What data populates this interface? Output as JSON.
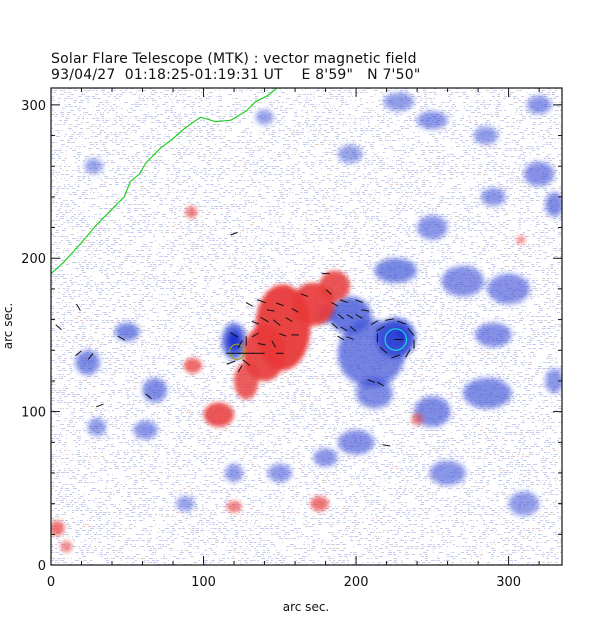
{
  "header": {
    "line1": "Solar Flare Telescope (MTK) : vector magnetic field",
    "date": "93/04/27",
    "time_range": "01:18:25-01:19:31 UT",
    "position": "E 8'59\"   N 7'50\""
  },
  "chart_data": {
    "type": "heatmap",
    "title": "Solar Flare Telescope (MTK) : vector magnetic field",
    "xlabel": "arc sec.",
    "ylabel": "arc sec.",
    "xlim": [
      0,
      335
    ],
    "ylim": [
      0,
      311
    ],
    "xticks": [
      0,
      100,
      200,
      300
    ],
    "yticks": [
      0,
      100,
      200,
      300
    ],
    "xtick_labels": [
      "0",
      "100",
      "200",
      "300"
    ],
    "ytick_labels": [
      "0",
      "100",
      "200",
      "300"
    ],
    "colors": {
      "positive_polarity": "#e83a3a",
      "negative_polarity": "#3a4fd6",
      "background_noise": "#c8cdef",
      "limb_contour": "#1fcf1f",
      "sunspot_contour": "#18d8e0",
      "vector_segments": "#111111"
    },
    "positive_regions": [
      {
        "x": 152,
        "y": 155,
        "rx": 18,
        "ry": 28,
        "strength": 1.0
      },
      {
        "x": 172,
        "y": 170,
        "rx": 14,
        "ry": 14,
        "strength": 0.95
      },
      {
        "x": 186,
        "y": 182,
        "rx": 10,
        "ry": 10,
        "strength": 0.85
      },
      {
        "x": 140,
        "y": 138,
        "rx": 14,
        "ry": 18,
        "strength": 0.95
      },
      {
        "x": 128,
        "y": 120,
        "rx": 8,
        "ry": 12,
        "strength": 0.8
      },
      {
        "x": 110,
        "y": 98,
        "rx": 10,
        "ry": 8,
        "strength": 0.85
      },
      {
        "x": 93,
        "y": 130,
        "rx": 6,
        "ry": 5,
        "strength": 0.7
      },
      {
        "x": 92,
        "y": 230,
        "rx": 4,
        "ry": 4,
        "strength": 0.5
      },
      {
        "x": 120,
        "y": 38,
        "rx": 5,
        "ry": 4,
        "strength": 0.5
      },
      {
        "x": 176,
        "y": 40,
        "rx": 6,
        "ry": 5,
        "strength": 0.6
      },
      {
        "x": 4,
        "y": 24,
        "rx": 5,
        "ry": 5,
        "strength": 0.6
      },
      {
        "x": 10,
        "y": 12,
        "rx": 4,
        "ry": 4,
        "strength": 0.4
      },
      {
        "x": 240,
        "y": 95,
        "rx": 4,
        "ry": 4,
        "strength": 0.4
      },
      {
        "x": 308,
        "y": 212,
        "rx": 3,
        "ry": 3,
        "strength": 0.35
      }
    ],
    "negative_regions": [
      {
        "x": 226,
        "y": 148,
        "rx": 13,
        "ry": 13,
        "strength": 1.0
      },
      {
        "x": 210,
        "y": 138,
        "rx": 22,
        "ry": 22,
        "strength": 0.6
      },
      {
        "x": 196,
        "y": 163,
        "rx": 14,
        "ry": 12,
        "strength": 0.7
      },
      {
        "x": 226,
        "y": 192,
        "rx": 14,
        "ry": 8,
        "strength": 0.55
      },
      {
        "x": 212,
        "y": 112,
        "rx": 12,
        "ry": 10,
        "strength": 0.5
      },
      {
        "x": 120,
        "y": 146,
        "rx": 8,
        "ry": 12,
        "strength": 0.75
      },
      {
        "x": 50,
        "y": 152,
        "rx": 8,
        "ry": 6,
        "strength": 0.55
      },
      {
        "x": 24,
        "y": 132,
        "rx": 8,
        "ry": 8,
        "strength": 0.5
      },
      {
        "x": 68,
        "y": 114,
        "rx": 8,
        "ry": 8,
        "strength": 0.5
      },
      {
        "x": 180,
        "y": 164,
        "rx": 6,
        "ry": 6,
        "strength": 0.55
      },
      {
        "x": 250,
        "y": 100,
        "rx": 12,
        "ry": 10,
        "strength": 0.5
      },
      {
        "x": 286,
        "y": 112,
        "rx": 16,
        "ry": 10,
        "strength": 0.5
      },
      {
        "x": 290,
        "y": 150,
        "rx": 12,
        "ry": 8,
        "strength": 0.45
      },
      {
        "x": 250,
        "y": 220,
        "rx": 10,
        "ry": 8,
        "strength": 0.4
      },
      {
        "x": 270,
        "y": 185,
        "rx": 14,
        "ry": 10,
        "strength": 0.45
      },
      {
        "x": 300,
        "y": 180,
        "rx": 14,
        "ry": 10,
        "strength": 0.45
      },
      {
        "x": 290,
        "y": 240,
        "rx": 8,
        "ry": 6,
        "strength": 0.4
      },
      {
        "x": 320,
        "y": 255,
        "rx": 10,
        "ry": 8,
        "strength": 0.45
      },
      {
        "x": 330,
        "y": 235,
        "rx": 6,
        "ry": 8,
        "strength": 0.5
      },
      {
        "x": 250,
        "y": 290,
        "rx": 10,
        "ry": 6,
        "strength": 0.4
      },
      {
        "x": 285,
        "y": 280,
        "rx": 8,
        "ry": 6,
        "strength": 0.35
      },
      {
        "x": 200,
        "y": 80,
        "rx": 12,
        "ry": 8,
        "strength": 0.45
      },
      {
        "x": 180,
        "y": 70,
        "rx": 8,
        "ry": 6,
        "strength": 0.4
      },
      {
        "x": 150,
        "y": 60,
        "rx": 8,
        "ry": 6,
        "strength": 0.35
      },
      {
        "x": 120,
        "y": 60,
        "rx": 6,
        "ry": 6,
        "strength": 0.35
      },
      {
        "x": 62,
        "y": 88,
        "rx": 8,
        "ry": 6,
        "strength": 0.4
      },
      {
        "x": 30,
        "y": 90,
        "rx": 6,
        "ry": 6,
        "strength": 0.35
      },
      {
        "x": 260,
        "y": 60,
        "rx": 12,
        "ry": 8,
        "strength": 0.4
      },
      {
        "x": 310,
        "y": 40,
        "rx": 10,
        "ry": 8,
        "strength": 0.35
      },
      {
        "x": 330,
        "y": 120,
        "rx": 6,
        "ry": 8,
        "strength": 0.4
      },
      {
        "x": 320,
        "y": 300,
        "rx": 8,
        "ry": 6,
        "strength": 0.4
      },
      {
        "x": 228,
        "y": 302,
        "rx": 10,
        "ry": 6,
        "strength": 0.35
      },
      {
        "x": 196,
        "y": 268,
        "rx": 8,
        "ry": 6,
        "strength": 0.3
      },
      {
        "x": 28,
        "y": 260,
        "rx": 6,
        "ry": 5,
        "strength": 0.3
      },
      {
        "x": 140,
        "y": 292,
        "rx": 6,
        "ry": 5,
        "strength": 0.3
      },
      {
        "x": 88,
        "y": 40,
        "rx": 6,
        "ry": 5,
        "strength": 0.3
      }
    ],
    "limb_curve": [
      [
        0,
        190
      ],
      [
        8,
        197
      ],
      [
        18,
        208
      ],
      [
        30,
        222
      ],
      [
        40,
        232
      ],
      [
        48,
        240
      ],
      [
        52,
        250
      ],
      [
        58,
        255
      ],
      [
        62,
        262
      ],
      [
        72,
        272
      ],
      [
        80,
        278
      ],
      [
        88,
        285
      ],
      [
        98,
        292
      ],
      [
        108,
        289
      ],
      [
        118,
        290
      ],
      [
        128,
        296
      ],
      [
        134,
        302
      ],
      [
        142,
        306
      ],
      [
        148,
        311
      ]
    ],
    "sunspot_contours": [
      {
        "x": 226,
        "y": 147,
        "r": 7,
        "color": "#18d8e0"
      },
      {
        "x": 122,
        "y": 139,
        "r": 5,
        "color": "#a0a020"
      }
    ],
    "vector_field": [
      {
        "x": 120,
        "y": 138,
        "angle": 0,
        "len": 10
      },
      {
        "x": 128,
        "y": 138,
        "angle": 0,
        "len": 10
      },
      {
        "x": 136,
        "y": 138,
        "angle": 0,
        "len": 8
      },
      {
        "x": 124,
        "y": 144,
        "angle": 60,
        "len": 6
      },
      {
        "x": 128,
        "y": 132,
        "angle": -40,
        "len": 6
      },
      {
        "x": 118,
        "y": 132,
        "angle": 20,
        "len": 6
      },
      {
        "x": 120,
        "y": 150,
        "angle": -30,
        "len": 6
      },
      {
        "x": 128,
        "y": 146,
        "angle": 90,
        "len": 6
      },
      {
        "x": 134,
        "y": 150,
        "angle": 30,
        "len": 5
      },
      {
        "x": 124,
        "y": 128,
        "angle": 60,
        "len": 5
      },
      {
        "x": 130,
        "y": 170,
        "angle": -30,
        "len": 5
      },
      {
        "x": 138,
        "y": 172,
        "angle": -20,
        "len": 6
      },
      {
        "x": 144,
        "y": 166,
        "angle": -10,
        "len": 5
      },
      {
        "x": 150,
        "y": 170,
        "angle": -20,
        "len": 5
      },
      {
        "x": 140,
        "y": 160,
        "angle": -30,
        "len": 6
      },
      {
        "x": 148,
        "y": 158,
        "angle": -40,
        "len": 6
      },
      {
        "x": 156,
        "y": 160,
        "angle": -30,
        "len": 5
      },
      {
        "x": 152,
        "y": 150,
        "angle": -20,
        "len": 5
      },
      {
        "x": 160,
        "y": 150,
        "angle": 0,
        "len": 5
      },
      {
        "x": 146,
        "y": 144,
        "angle": -60,
        "len": 5
      },
      {
        "x": 150,
        "y": 138,
        "angle": 0,
        "len": 5
      },
      {
        "x": 138,
        "y": 144,
        "angle": -10,
        "len": 5
      },
      {
        "x": 134,
        "y": 158,
        "angle": -20,
        "len": 5
      },
      {
        "x": 160,
        "y": 166,
        "angle": -30,
        "len": 5
      },
      {
        "x": 166,
        "y": 176,
        "angle": -20,
        "len": 5
      },
      {
        "x": 180,
        "y": 190,
        "angle": 0,
        "len": 5
      },
      {
        "x": 182,
        "y": 178,
        "angle": -40,
        "len": 5
      },
      {
        "x": 186,
        "y": 170,
        "angle": -30,
        "len": 5
      },
      {
        "x": 192,
        "y": 172,
        "angle": -20,
        "len": 5
      },
      {
        "x": 190,
        "y": 162,
        "angle": -40,
        "len": 5
      },
      {
        "x": 196,
        "y": 162,
        "angle": -30,
        "len": 5
      },
      {
        "x": 202,
        "y": 162,
        "angle": -30,
        "len": 5
      },
      {
        "x": 186,
        "y": 156,
        "angle": -40,
        "len": 5
      },
      {
        "x": 192,
        "y": 154,
        "angle": -30,
        "len": 5
      },
      {
        "x": 198,
        "y": 154,
        "angle": -40,
        "len": 5
      },
      {
        "x": 190,
        "y": 148,
        "angle": -30,
        "len": 5
      },
      {
        "x": 196,
        "y": 148,
        "angle": -20,
        "len": 5
      },
      {
        "x": 202,
        "y": 172,
        "angle": -20,
        "len": 5
      },
      {
        "x": 206,
        "y": 166,
        "angle": -10,
        "len": 5
      },
      {
        "x": 216,
        "y": 154,
        "angle": 30,
        "len": 6
      },
      {
        "x": 222,
        "y": 160,
        "angle": 10,
        "len": 6
      },
      {
        "x": 230,
        "y": 158,
        "angle": -20,
        "len": 6
      },
      {
        "x": 236,
        "y": 152,
        "angle": -50,
        "len": 6
      },
      {
        "x": 238,
        "y": 144,
        "angle": -90,
        "len": 6
      },
      {
        "x": 234,
        "y": 138,
        "angle": 60,
        "len": 6
      },
      {
        "x": 226,
        "y": 136,
        "angle": 20,
        "len": 6
      },
      {
        "x": 218,
        "y": 140,
        "angle": -40,
        "len": 6
      },
      {
        "x": 214,
        "y": 148,
        "angle": 90,
        "len": 6
      },
      {
        "x": 228,
        "y": 147,
        "angle": 0,
        "len": 6
      },
      {
        "x": 210,
        "y": 120,
        "angle": -20,
        "len": 5
      },
      {
        "x": 216,
        "y": 118,
        "angle": -30,
        "len": 5
      },
      {
        "x": 212,
        "y": 158,
        "angle": 30,
        "len": 5
      },
      {
        "x": 220,
        "y": 78,
        "angle": -10,
        "len": 5
      },
      {
        "x": 5,
        "y": 155,
        "angle": -40,
        "len": 5
      },
      {
        "x": 18,
        "y": 168,
        "angle": -60,
        "len": 5
      },
      {
        "x": 18,
        "y": 138,
        "angle": 40,
        "len": 5
      },
      {
        "x": 26,
        "y": 136,
        "angle": 50,
        "len": 5
      },
      {
        "x": 46,
        "y": 148,
        "angle": -30,
        "len": 5
      },
      {
        "x": 32,
        "y": 104,
        "angle": 20,
        "len": 5
      },
      {
        "x": 64,
        "y": 110,
        "angle": -40,
        "len": 5
      },
      {
        "x": 120,
        "y": 216,
        "angle": 20,
        "len": 5
      }
    ]
  }
}
